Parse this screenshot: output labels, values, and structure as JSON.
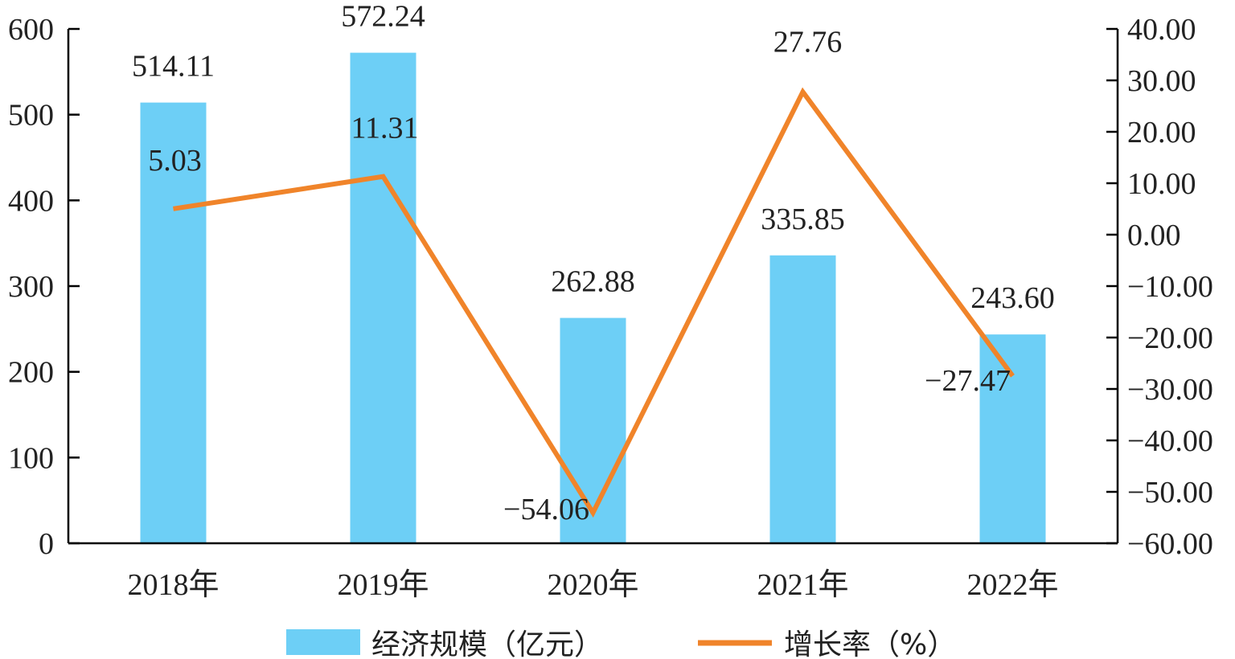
{
  "chart_data": {
    "type": "bar",
    "categories": [
      "2018年",
      "2019年",
      "2020年",
      "2021年",
      "2022年"
    ],
    "series": [
      {
        "name": "经济规模（亿元）",
        "type": "bar",
        "axis": "left",
        "color": "#6DCFF6",
        "values": [
          514.11,
          572.24,
          262.88,
          335.85,
          243.6
        ],
        "labels": [
          "514.11",
          "572.24",
          "262.88",
          "335.85",
          "243.60"
        ]
      },
      {
        "name": "增长率（%）",
        "type": "line",
        "axis": "right",
        "color": "#F0842A",
        "values": [
          5.03,
          11.31,
          -54.06,
          27.76,
          -27.47
        ],
        "labels": [
          "5.03",
          "11.31",
          "−54.06",
          "27.76",
          "−27.47"
        ]
      }
    ],
    "y_left": {
      "range": [
        0,
        600
      ],
      "ticks": [
        0,
        100,
        200,
        300,
        400,
        500,
        600
      ],
      "tick_labels": [
        "0",
        "100",
        "200",
        "300",
        "400",
        "500",
        "600"
      ]
    },
    "y_right": {
      "range": [
        -60,
        40
      ],
      "ticks": [
        -60,
        -50,
        -40,
        -30,
        -20,
        -10,
        0,
        10,
        20,
        30,
        40
      ],
      "tick_labels": [
        "−60.00",
        "−50.00",
        "−40.00",
        "−30.00",
        "−20.00",
        "−10.00",
        "0.00",
        "10.00",
        "20.00",
        "30.00",
        "40.00"
      ]
    },
    "legend": {
      "placement": "bottom"
    },
    "grid": false
  }
}
